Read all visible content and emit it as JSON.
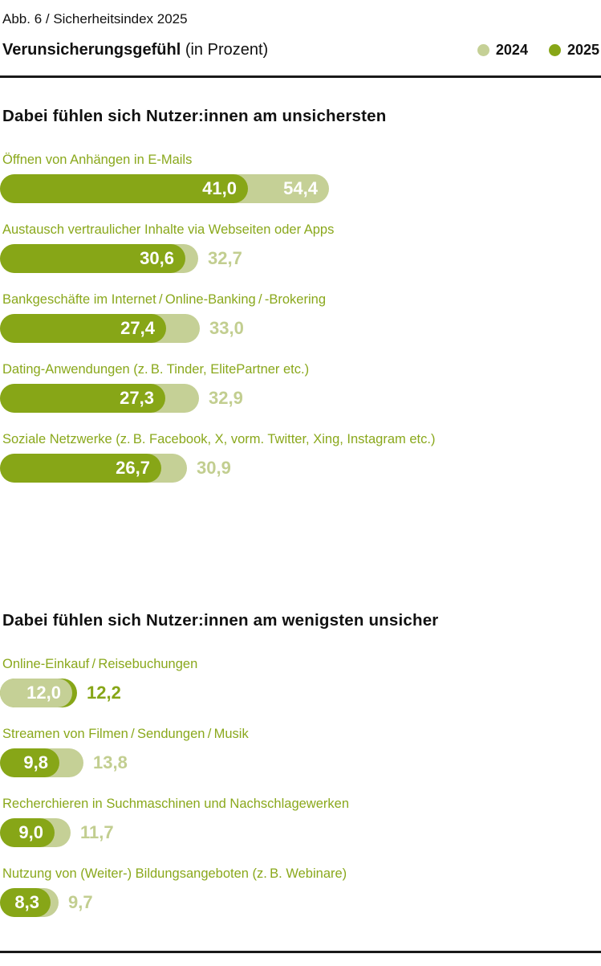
{
  "header": {
    "figure_label": "Abb. 6 / Sicherheitsindex 2025",
    "title": "Verunsicherungsgefühl",
    "title_suffix": "(in Prozent)",
    "legend": [
      {
        "label": "2024",
        "color": "#c5d096"
      },
      {
        "label": "2025",
        "color": "#87a617"
      }
    ]
  },
  "colors": {
    "bar_2024": "#c5d096",
    "bar_2025": "#87a617",
    "text_2024": "#c2ce90",
    "text_2025": "#87a617",
    "category_label": "#8aa81c",
    "heading_text": "#111111",
    "value_inside": "#ffffff",
    "rule": "#191919"
  },
  "chart_data": {
    "type": "bar",
    "orientation": "horizontal",
    "unit": "percent",
    "title": "Verunsicherungsgefühl (in Prozent)",
    "legend_position": "top-right",
    "series_names": [
      "2024",
      "2025"
    ],
    "x_range": [
      0,
      60
    ],
    "sections": [
      {
        "heading": "Dabei fühlen sich Nutzer:innen am unsichersten",
        "items": [
          {
            "label": "Öffnen von Anhängen in E-Mails",
            "v2024": 54.4,
            "v2025": 41.0,
            "d2024": "54,4",
            "d2025": "41,0"
          },
          {
            "label": "Austausch vertraulicher Inhalte via Webseiten oder Apps",
            "v2024": 32.7,
            "v2025": 30.6,
            "d2024": "32,7",
            "d2025": "30,6"
          },
          {
            "label": "Bankgeschäfte im Internet / Online-Banking / -Brokering",
            "v2024": 33.0,
            "v2025": 27.4,
            "d2024": "33,0",
            "d2025": "27,4"
          },
          {
            "label": "Dating-Anwendungen (z. B. Tinder, ElitePartner etc.)",
            "v2024": 32.9,
            "v2025": 27.3,
            "d2024": "32,9",
            "d2025": "27,3"
          },
          {
            "label": "Soziale Netzwerke (z. B. Facebook, X, vorm. Twitter, Xing, Instagram etc.)",
            "v2024": 30.9,
            "v2025": 26.7,
            "d2024": "30,9",
            "d2025": "26,7"
          }
        ]
      },
      {
        "heading": "Dabei fühlen sich Nutzer:innen am wenigsten unsicher",
        "items": [
          {
            "label": "Online-Einkauf / Reisebuchungen",
            "v2024": 12.0,
            "v2025": 12.2,
            "d2024": "12,0",
            "d2025": "12,2"
          },
          {
            "label": "Streamen von Filmen / Sendungen / Musik",
            "v2024": 13.8,
            "v2025": 9.8,
            "d2024": "13,8",
            "d2025": "9,8"
          },
          {
            "label": "Recherchieren in Suchmaschinen und Nachschlagewerken",
            "v2024": 11.7,
            "v2025": 9.0,
            "d2024": "11,7",
            "d2025": "9,0"
          },
          {
            "label": "Nutzung von (Weiter-) Bildungsangeboten (z. B. Webinare)",
            "v2024": 9.7,
            "v2025": 8.3,
            "d2024": "9,7",
            "d2025": "8,3"
          }
        ]
      }
    ]
  }
}
